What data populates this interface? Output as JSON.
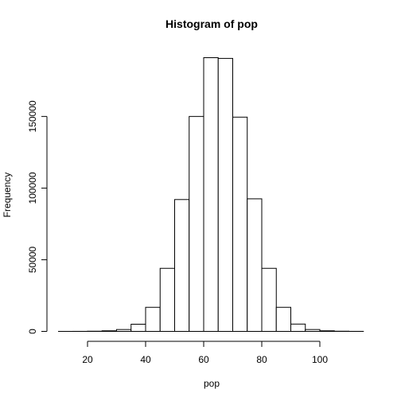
{
  "chart_data": {
    "type": "bar",
    "title": "Histogram of pop",
    "xlabel": "pop",
    "ylabel": "Frequency",
    "bin_width": 5,
    "bins": [
      {
        "start": 10,
        "end": 15,
        "value": 5
      },
      {
        "start": 15,
        "end": 20,
        "value": 30
      },
      {
        "start": 20,
        "end": 25,
        "value": 120
      },
      {
        "start": 25,
        "end": 30,
        "value": 400
      },
      {
        "start": 30,
        "end": 35,
        "value": 1300
      },
      {
        "start": 35,
        "end": 40,
        "value": 5000
      },
      {
        "start": 40,
        "end": 45,
        "value": 16800
      },
      {
        "start": 45,
        "end": 50,
        "value": 44000
      },
      {
        "start": 50,
        "end": 55,
        "value": 92000
      },
      {
        "start": 55,
        "end": 60,
        "value": 150000
      },
      {
        "start": 60,
        "end": 65,
        "value": 191000
      },
      {
        "start": 65,
        "end": 70,
        "value": 190500
      },
      {
        "start": 70,
        "end": 75,
        "value": 149500
      },
      {
        "start": 75,
        "end": 80,
        "value": 92500
      },
      {
        "start": 80,
        "end": 85,
        "value": 44000
      },
      {
        "start": 85,
        "end": 90,
        "value": 16800
      },
      {
        "start": 90,
        "end": 95,
        "value": 5100
      },
      {
        "start": 95,
        "end": 100,
        "value": 1300
      },
      {
        "start": 100,
        "end": 105,
        "value": 400
      },
      {
        "start": 105,
        "end": 110,
        "value": 120
      },
      {
        "start": 110,
        "end": 115,
        "value": 30
      }
    ],
    "xlim": [
      10,
      115
    ],
    "ylim": [
      0,
      196000
    ],
    "x_ticks": [
      20,
      40,
      60,
      80,
      100
    ],
    "y_ticks": [
      0,
      50000,
      100000,
      150000
    ],
    "grid": false
  }
}
